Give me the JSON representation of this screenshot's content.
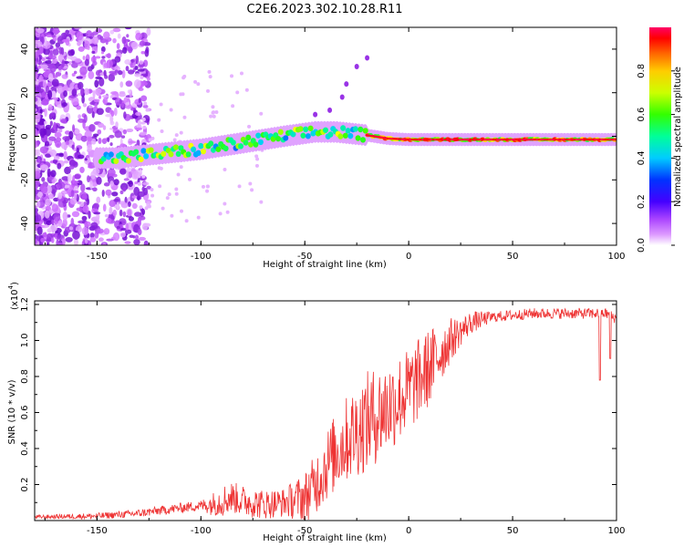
{
  "title": "C2E6.2023.302.10.28.R11",
  "chart_data": [
    {
      "type": "heatmap",
      "title": "C2E6.2023.302.10.28.R11",
      "xlabel": "Height of straight line (km)",
      "ylabel": "Frequency (Hz)",
      "xlim": [
        -180,
        100
      ],
      "ylim": [
        -50,
        50
      ],
      "x_ticks": [
        -150,
        -100,
        -50,
        0,
        50,
        100
      ],
      "y_ticks": [
        -40,
        -20,
        0,
        20,
        40
      ],
      "grid": false,
      "colorbar": {
        "label": "Normalized spectral amplitude",
        "range": [
          0.0,
          1.0
        ],
        "ticks": [
          0.0,
          0.2,
          0.4,
          0.6,
          0.8
        ],
        "colormap": [
          "#ffffff",
          "#cc66ff",
          "#6600cc",
          "#0000ff",
          "#00ccff",
          "#00ff88",
          "#33ff00",
          "#ffff00",
          "#ff8800",
          "#ff0000",
          "#ff0066"
        ]
      },
      "ridge": [
        {
          "x": -140,
          "f": -10
        },
        {
          "x": -120,
          "f": -8
        },
        {
          "x": -100,
          "f": -6
        },
        {
          "x": -80,
          "f": -3
        },
        {
          "x": -60,
          "f": 0
        },
        {
          "x": -45,
          "f": 2
        },
        {
          "x": -35,
          "f": 2
        },
        {
          "x": -20,
          "f": 0.5
        },
        {
          "x": -10,
          "f": -1
        },
        {
          "x": 0,
          "f": -1.5
        },
        {
          "x": 25,
          "f": -1.5
        },
        {
          "x": 50,
          "f": -1.5
        },
        {
          "x": 75,
          "f": -1.5
        },
        {
          "x": 100,
          "f": -1.5
        }
      ]
    },
    {
      "type": "line",
      "xlabel": "Height of straight line (km)",
      "ylabel": "SNR (10 * v/v)",
      "y_multiplier": "(x10",
      "y_multiplier_exp": "4",
      "y_multiplier_close": ")",
      "xlim": [
        -180,
        100
      ],
      "ylim": [
        0,
        1.22
      ],
      "x_ticks": [
        -150,
        -100,
        -50,
        0,
        50,
        100
      ],
      "y_ticks": [
        0.2,
        0.4,
        0.6,
        0.8,
        1.0,
        1.2
      ],
      "line_color": "#ee3333",
      "grid": false,
      "profile": [
        {
          "x": -180,
          "y": 0.02
        },
        {
          "x": -150,
          "y": 0.025
        },
        {
          "x": -130,
          "y": 0.04
        },
        {
          "x": -110,
          "y": 0.07
        },
        {
          "x": -95,
          "y": 0.09
        },
        {
          "x": -85,
          "y": 0.13
        },
        {
          "x": -80,
          "y": 0.11
        },
        {
          "x": -70,
          "y": 0.09
        },
        {
          "x": -60,
          "y": 0.1
        },
        {
          "x": -50,
          "y": 0.13
        },
        {
          "x": -45,
          "y": 0.2
        },
        {
          "x": -40,
          "y": 0.3
        },
        {
          "x": -35,
          "y": 0.38
        },
        {
          "x": -30,
          "y": 0.45
        },
        {
          "x": -20,
          "y": 0.55
        },
        {
          "x": -10,
          "y": 0.63
        },
        {
          "x": 0,
          "y": 0.72
        },
        {
          "x": 10,
          "y": 0.85
        },
        {
          "x": 20,
          "y": 1.0
        },
        {
          "x": 30,
          "y": 1.1
        },
        {
          "x": 40,
          "y": 1.13
        },
        {
          "x": 60,
          "y": 1.15
        },
        {
          "x": 80,
          "y": 1.15
        },
        {
          "x": 95,
          "y": 1.15
        },
        {
          "x": 100,
          "y": 1.12
        }
      ],
      "noise": [
        {
          "x": -180,
          "amp": 0.01
        },
        {
          "x": -100,
          "amp": 0.03
        },
        {
          "x": -90,
          "amp": 0.09
        },
        {
          "x": -60,
          "amp": 0.08
        },
        {
          "x": -40,
          "amp": 0.2
        },
        {
          "x": -20,
          "amp": 0.28
        },
        {
          "x": 10,
          "amp": 0.22
        },
        {
          "x": 25,
          "amp": 0.08
        },
        {
          "x": 40,
          "amp": 0.03
        },
        {
          "x": 100,
          "amp": 0.03
        }
      ],
      "spikes": [
        {
          "x": 92,
          "y": 0.78
        },
        {
          "x": 97,
          "y": 0.9
        }
      ]
    }
  ]
}
